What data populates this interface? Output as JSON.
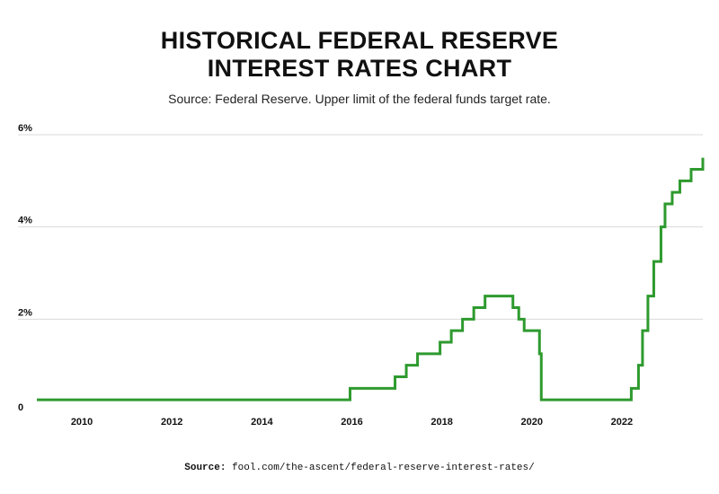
{
  "title_line1": "HISTORICAL FEDERAL RESERVE",
  "title_line2": "INTEREST RATES CHART",
  "subtitle": "Source: Federal Reserve. Upper limit of the federal funds target rate.",
  "footer": {
    "label": "Source:",
    "url": "fool.com/the-ascent/federal-reserve-interest-rates/"
  },
  "colors": {
    "line": "#2e9a2e",
    "grid": "#d9d9d9",
    "text": "#111111"
  },
  "chart_data": {
    "type": "line",
    "title": "HISTORICAL FEDERAL RESERVE INTEREST RATES CHART",
    "subtitle": "Source: Federal Reserve. Upper limit of the federal funds target rate.",
    "xlabel": "",
    "ylabel": "",
    "xlim": [
      2009.0,
      2023.8
    ],
    "ylim": [
      0,
      6
    ],
    "grid": "horizontal",
    "legend": "none",
    "x_ticks": [
      {
        "value": 2010,
        "label": "2010"
      },
      {
        "value": 2012,
        "label": "2012"
      },
      {
        "value": 2014,
        "label": "2014"
      },
      {
        "value": 2016,
        "label": "2016"
      },
      {
        "value": 2018,
        "label": "2018"
      },
      {
        "value": 2020,
        "label": "2020"
      },
      {
        "value": 2022,
        "label": "2022"
      }
    ],
    "y_ticks": [
      {
        "value": 0,
        "label": "0"
      },
      {
        "value": 2,
        "label": "2%"
      },
      {
        "value": 4,
        "label": "4%"
      },
      {
        "value": 6,
        "label": "6%"
      }
    ],
    "series": [
      {
        "step": "after",
        "x": [
          2009.0,
          2015.96,
          2016.96,
          2017.21,
          2017.46,
          2017.96,
          2018.21,
          2018.46,
          2018.71,
          2018.96,
          2019.58,
          2019.71,
          2019.83,
          2020.17,
          2020.21,
          2022.21,
          2022.37,
          2022.46,
          2022.58,
          2022.71,
          2022.87,
          2022.96,
          2023.12,
          2023.29,
          2023.54,
          2023.8
        ],
        "y": [
          0.25,
          0.5,
          0.75,
          1.0,
          1.25,
          1.5,
          1.75,
          2.0,
          2.25,
          2.5,
          2.25,
          2.0,
          1.75,
          1.25,
          0.25,
          0.5,
          1.0,
          1.75,
          2.5,
          3.25,
          4.0,
          4.5,
          4.75,
          5.0,
          5.25,
          5.5
        ]
      }
    ]
  }
}
